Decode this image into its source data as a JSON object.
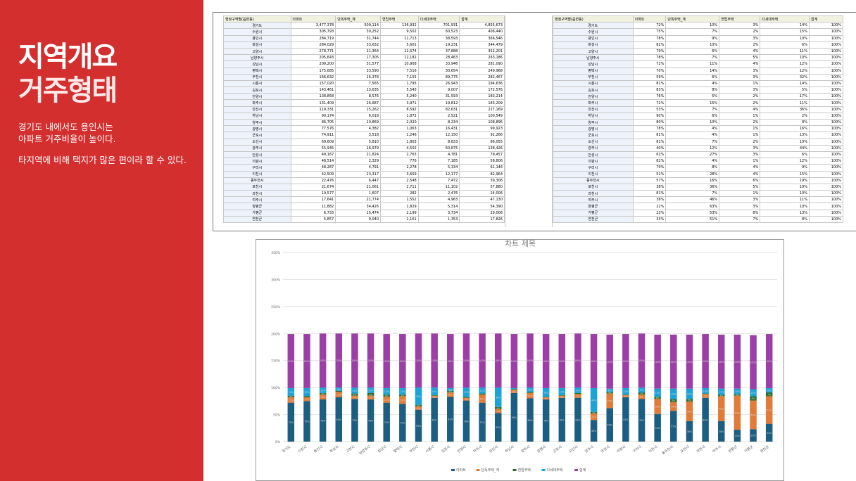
{
  "panel": {
    "title_line1": "지역개요",
    "title_line2": "거주형태",
    "desc_line1": "경기도 내에서도 용인시는",
    "desc_line2": "아파트 거주비율이 높이다.",
    "desc_line3": "타지역에 비해 택지가 많은 편이라 할 수 있다."
  },
  "colors": {
    "panel_red": "#d32f2f",
    "apartment": "#1b5e82",
    "detached": "#e07b39",
    "row_house": "#2e6b2e",
    "multi_family": "#1ba3d8",
    "total": "#9b3fa6"
  },
  "sheet": {
    "headers_left": [
      "행정구역별(읍면동)",
      "아파트",
      "단독주택_계",
      "연립주택",
      "다세대주택",
      "합계"
    ],
    "headers_right": [
      "행정구역별(읍면동)",
      "아파트",
      "단독주택_계",
      "연립주택",
      "다세대주택",
      "합계"
    ],
    "rows_left": [
      [
        "경기도",
        "3,477,378",
        "509,114",
        "136,932",
        "701,931",
        "4,855,673"
      ],
      [
        "수원시",
        "305,793",
        "30,252",
        "9,502",
        "60,523",
        "406,440"
      ],
      [
        "용인시",
        "284,719",
        "31,744",
        "11,713",
        "38,593",
        "366,546"
      ],
      [
        "화성시",
        "284,029",
        "33,632",
        "5,601",
        "19,231",
        "344,479"
      ],
      [
        "고양시",
        "278,771",
        "21,364",
        "12,574",
        "37,888",
        "352,201"
      ],
      [
        "남양주시",
        "205,643",
        "17,305",
        "12,182",
        "28,463",
        "263,186"
      ],
      [
        "성남시",
        "209,200",
        "31,577",
        "10,908",
        "33,946",
        "281,090"
      ],
      [
        "평택시",
        "175,685",
        "33,590",
        "7,516",
        "30,654",
        "249,968"
      ],
      [
        "부천시",
        "166,632",
        "16,378",
        "7,155",
        "89,775",
        "282,467"
      ],
      [
        "시흥시",
        "157,020",
        "7,565",
        "1,795",
        "26,943",
        "194,636"
      ],
      [
        "김포시",
        "143,461",
        "13,635",
        "5,543",
        "9,007",
        "172,576"
      ],
      [
        "안양시",
        "138,858",
        "8,576",
        "5,240",
        "31,593",
        "183,214"
      ],
      [
        "파주시",
        "131,409",
        "26,687",
        "3,971",
        "19,812",
        "183,209"
      ],
      [
        "안산시",
        "119,331",
        "15,262",
        "8,592",
        "82,631",
        "227,169"
      ],
      [
        "하남시",
        "90,174",
        "6,018",
        "1,872",
        "2,521",
        "100,549"
      ],
      [
        "양주시",
        "86,705",
        "10,869",
        "2,020",
        "8,234",
        "108,896"
      ],
      [
        "광명시",
        "77,576",
        "4,382",
        "1,063",
        "16,431",
        "99,923"
      ],
      [
        "군포시",
        "74,911",
        "3,518",
        "1,246",
        "12,150",
        "92,266"
      ],
      [
        "오산시",
        "69,609",
        "5,810",
        "1,803",
        "8,833",
        "86,055"
      ],
      [
        "광주시",
        "55,945",
        "16,979",
        "4,502",
        "60,875",
        "138,426"
      ],
      [
        "안성시",
        "49,167",
        "21,824",
        "2,763",
        "4,781",
        "79,457"
      ],
      [
        "의왕시",
        "48,514",
        "2,329",
        "776",
        "7,185",
        "58,806"
      ],
      [
        "구리시",
        "48,287",
        "4,791",
        "2,278",
        "5,334",
        "61,146"
      ],
      [
        "이천시",
        "42,509",
        "23,317",
        "3,659",
        "12,177",
        "82,964"
      ],
      [
        "동두천시",
        "22,476",
        "6,447",
        "2,548",
        "7,472",
        "39,306"
      ],
      [
        "포천시",
        "21,674",
        "21,061",
        "2,711",
        "11,102",
        "57,880"
      ],
      [
        "과천시",
        "19,577",
        "1,607",
        "282",
        "2,476",
        "24,006"
      ],
      [
        "여주시",
        "17,641",
        "21,774",
        "1,552",
        "4,963",
        "47,130"
      ],
      [
        "양평군",
        "11,882",
        "34,426",
        "1,829",
        "5,314",
        "54,390"
      ],
      [
        "가평군",
        "6,733",
        "15,474",
        "2,199",
        "3,734",
        "29,006"
      ],
      [
        "연천군",
        "5,857",
        "9,040",
        "1,161",
        "1,353",
        "17,826"
      ]
    ],
    "rows_right": [
      [
        "경기도",
        "72%",
        "10%",
        "3%",
        "14%",
        "100%"
      ],
      [
        "수원시",
        "75%",
        "7%",
        "2%",
        "15%",
        "100%"
      ],
      [
        "용인시",
        "78%",
        "9%",
        "3%",
        "10%",
        "100%"
      ],
      [
        "화성시",
        "82%",
        "10%",
        "2%",
        "6%",
        "100%"
      ],
      [
        "고양시",
        "79%",
        "6%",
        "4%",
        "11%",
        "100%"
      ],
      [
        "남양주시",
        "78%",
        "7%",
        "5%",
        "10%",
        "100%"
      ],
      [
        "성남시",
        "72%",
        "11%",
        "4%",
        "12%",
        "100%"
      ],
      [
        "평택시",
        "70%",
        "14%",
        "3%",
        "12%",
        "100%"
      ],
      [
        "부천시",
        "59%",
        "6%",
        "3%",
        "32%",
        "100%"
      ],
      [
        "시흥시",
        "81%",
        "4%",
        "1%",
        "14%",
        "100%"
      ],
      [
        "김포시",
        "83%",
        "8%",
        "3%",
        "5%",
        "100%"
      ],
      [
        "안양시",
        "76%",
        "5%",
        "2%",
        "17%",
        "100%"
      ],
      [
        "파주시",
        "72%",
        "15%",
        "2%",
        "11%",
        "100%"
      ],
      [
        "안산시",
        "53%",
        "7%",
        "4%",
        "36%",
        "100%"
      ],
      [
        "하남시",
        "90%",
        "6%",
        "1%",
        "2%",
        "100%"
      ],
      [
        "양주시",
        "80%",
        "10%",
        "2%",
        "8%",
        "100%"
      ],
      [
        "광명시",
        "78%",
        "4%",
        "1%",
        "16%",
        "100%"
      ],
      [
        "군포시",
        "81%",
        "4%",
        "1%",
        "13%",
        "100%"
      ],
      [
        "오산시",
        "81%",
        "7%",
        "2%",
        "10%",
        "100%"
      ],
      [
        "광주시",
        "40%",
        "12%",
        "3%",
        "44%",
        "100%"
      ],
      [
        "안성시",
        "62%",
        "27%",
        "3%",
        "6%",
        "100%"
      ],
      [
        "의왕시",
        "82%",
        "4%",
        "1%",
        "12%",
        "100%"
      ],
      [
        "구리시",
        "79%",
        "8%",
        "4%",
        "9%",
        "100%"
      ],
      [
        "이천시",
        "51%",
        "28%",
        "4%",
        "15%",
        "100%"
      ],
      [
        "동두천시",
        "57%",
        "16%",
        "6%",
        "19%",
        "100%"
      ],
      [
        "포천시",
        "38%",
        "36%",
        "5%",
        "19%",
        "100%"
      ],
      [
        "과천시",
        "81%",
        "7%",
        "1%",
        "10%",
        "100%"
      ],
      [
        "여주시",
        "38%",
        "46%",
        "3%",
        "11%",
        "100%"
      ],
      [
        "양평군",
        "22%",
        "63%",
        "3%",
        "10%",
        "100%"
      ],
      [
        "가평군",
        "23%",
        "53%",
        "8%",
        "13%",
        "100%"
      ],
      [
        "연천군",
        "33%",
        "51%",
        "7%",
        "8%",
        "100%"
      ]
    ]
  },
  "chart_data": {
    "type": "bar",
    "stacked": true,
    "title": "차트 제목",
    "ylim": [
      0,
      350
    ],
    "yticks": [
      "0%",
      "50%",
      "100%",
      "150%",
      "200%",
      "250%",
      "300%",
      "350%"
    ],
    "categories": [
      "경기도",
      "수원시",
      "용인시",
      "화성시",
      "고양시",
      "남양주시",
      "성남시",
      "평택시",
      "부천시",
      "시흥시",
      "김포시",
      "안양시",
      "파주시",
      "안산시",
      "하남시",
      "양주시",
      "광명시",
      "군포시",
      "오산시",
      "광주시",
      "안성시",
      "의왕시",
      "구리시",
      "이천시",
      "동두천시",
      "포천시",
      "과천시",
      "여주시",
      "양평군",
      "가평군",
      "연천군"
    ],
    "series": [
      {
        "name": "아파트",
        "values": [
          72,
          75,
          78,
          82,
          79,
          78,
          72,
          70,
          59,
          81,
          83,
          76,
          72,
          53,
          90,
          80,
          78,
          81,
          81,
          40,
          62,
          82,
          79,
          51,
          57,
          38,
          81,
          38,
          22,
          23,
          33
        ]
      },
      {
        "name": "단독주택_계",
        "values": [
          10,
          7,
          9,
          10,
          6,
          7,
          11,
          14,
          6,
          4,
          8,
          5,
          15,
          7,
          6,
          10,
          4,
          4,
          7,
          12,
          27,
          4,
          8,
          28,
          16,
          36,
          7,
          46,
          63,
          53,
          51
        ]
      },
      {
        "name": "연립주택",
        "values": [
          3,
          2,
          3,
          2,
          4,
          5,
          4,
          3,
          3,
          1,
          3,
          2,
          2,
          4,
          1,
          2,
          1,
          1,
          2,
          3,
          3,
          1,
          4,
          4,
          6,
          5,
          1,
          3,
          3,
          8,
          7
        ]
      },
      {
        "name": "다세대주택",
        "values": [
          14,
          15,
          10,
          6,
          11,
          10,
          12,
          12,
          32,
          14,
          5,
          17,
          11,
          36,
          2,
          8,
          16,
          13,
          10,
          44,
          6,
          12,
          9,
          15,
          19,
          19,
          10,
          11,
          10,
          13,
          8
        ]
      },
      {
        "name": "합계",
        "values": [
          100,
          100,
          100,
          100,
          100,
          100,
          100,
          100,
          100,
          100,
          100,
          100,
          100,
          100,
          100,
          100,
          100,
          100,
          100,
          100,
          100,
          100,
          100,
          100,
          100,
          100,
          100,
          100,
          100,
          100,
          100
        ]
      }
    ]
  }
}
